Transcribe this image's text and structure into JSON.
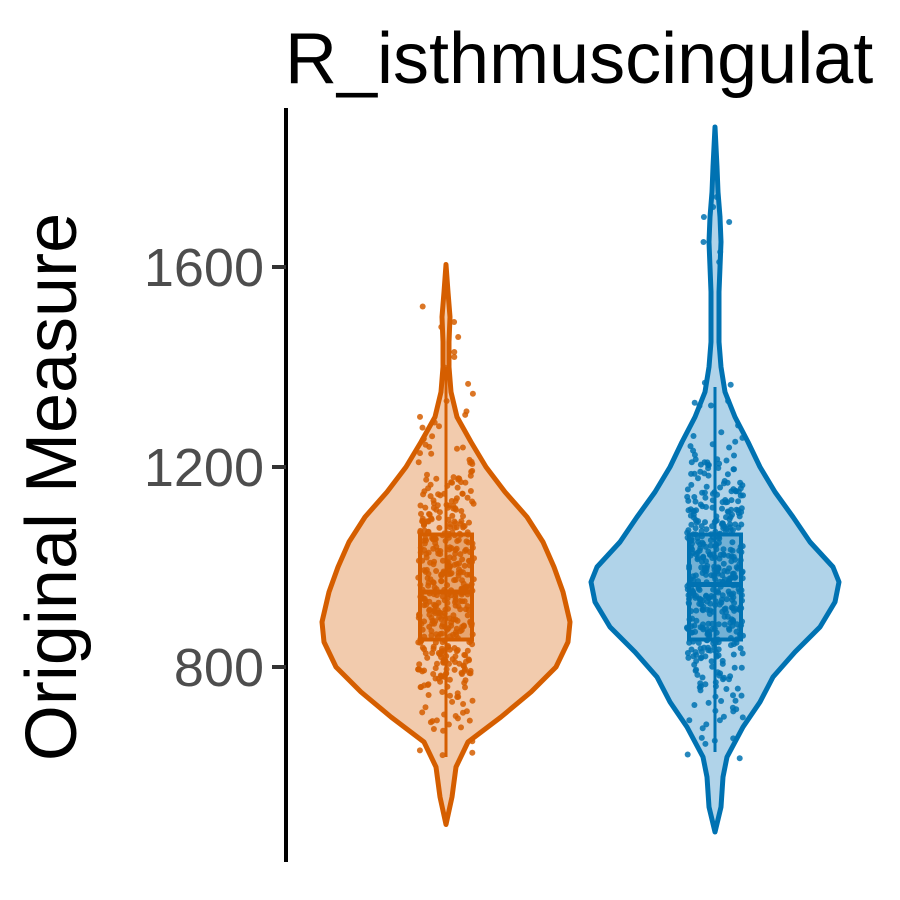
{
  "chart_data": {
    "type": "violin",
    "title": "R_isthmuscingulat",
    "xlabel": "",
    "ylabel": "Original Measure",
    "ylim": [
      480,
      1880
    ],
    "yticks": [
      800,
      1200,
      1600
    ],
    "grid": false,
    "legend": "none",
    "series": [
      {
        "color": "#D55E00",
        "fill": "#F2CBAD",
        "min": 485,
        "max": 1605,
        "q1": 855,
        "median": 950,
        "q3": 1065,
        "whisker_low": 620,
        "whisker_high": 1400,
        "density": [
          [
            485,
            0
          ],
          [
            540,
            6
          ],
          [
            600,
            10
          ],
          [
            650,
            22
          ],
          [
            700,
            55
          ],
          [
            750,
            85
          ],
          [
            800,
            110
          ],
          [
            850,
            122
          ],
          [
            890,
            124
          ],
          [
            950,
            117
          ],
          [
            1000,
            108
          ],
          [
            1050,
            97
          ],
          [
            1100,
            81
          ],
          [
            1150,
            59
          ],
          [
            1200,
            40
          ],
          [
            1250,
            25
          ],
          [
            1300,
            11
          ],
          [
            1350,
            5
          ],
          [
            1400,
            3
          ],
          [
            1450,
            3
          ],
          [
            1500,
            4
          ],
          [
            1550,
            2
          ],
          [
            1605,
            0
          ]
        ]
      },
      {
        "color": "#0072B2",
        "fill": "#B0D3E9",
        "min": 470,
        "max": 1880,
        "q1": 855,
        "median": 965,
        "q3": 1065,
        "whisker_low": 630,
        "whisker_high": 1360,
        "density": [
          [
            470,
            0
          ],
          [
            520,
            6
          ],
          [
            580,
            8
          ],
          [
            620,
            12
          ],
          [
            680,
            28
          ],
          [
            730,
            45
          ],
          [
            780,
            58
          ],
          [
            830,
            80
          ],
          [
            880,
            105
          ],
          [
            930,
            120
          ],
          [
            970,
            124
          ],
          [
            1000,
            118
          ],
          [
            1050,
            95
          ],
          [
            1100,
            78
          ],
          [
            1150,
            60
          ],
          [
            1200,
            45
          ],
          [
            1250,
            33
          ],
          [
            1300,
            20
          ],
          [
            1350,
            10
          ],
          [
            1400,
            6
          ],
          [
            1450,
            4
          ],
          [
            1500,
            4
          ],
          [
            1550,
            4
          ],
          [
            1600,
            5
          ],
          [
            1650,
            6
          ],
          [
            1700,
            5
          ],
          [
            1750,
            3
          ],
          [
            1800,
            2
          ],
          [
            1880,
            0
          ]
        ]
      }
    ]
  }
}
